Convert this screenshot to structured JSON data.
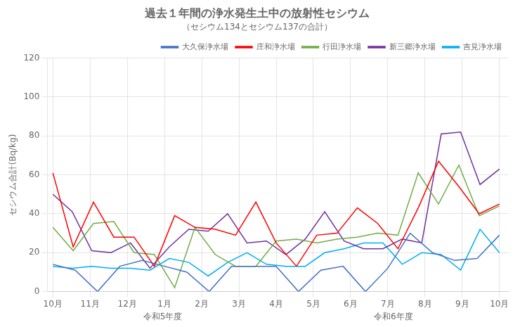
{
  "chart_data": {
    "type": "line",
    "title": "過去１年間の浄水発生土中の放射性セシウム",
    "subtitle": "（セシウム134とセシウム137の合計）",
    "ylabel": "セシウム合計(Bq/kg)",
    "annotations": [
      "令和5年度",
      "令和6年度"
    ],
    "xlim": [
      -0.3,
      24.5
    ],
    "xticks": [
      {
        "value": 0,
        "label": "10月"
      },
      {
        "value": 2,
        "label": "11月"
      },
      {
        "value": 4,
        "label": "12月"
      },
      {
        "value": 6,
        "label": "1月"
      },
      {
        "value": 8,
        "label": "2月"
      },
      {
        "value": 10,
        "label": "3月"
      },
      {
        "value": 12,
        "label": "4月"
      },
      {
        "value": 14,
        "label": "5月"
      },
      {
        "value": 16,
        "label": "6月"
      },
      {
        "value": 18,
        "label": "7月"
      },
      {
        "value": 20,
        "label": "8月"
      },
      {
        "value": 22,
        "label": "9月"
      },
      {
        "value": 24,
        "label": "10月"
      }
    ],
    "ylim": [
      0,
      120
    ],
    "yticks": [
      0,
      20,
      40,
      60,
      80,
      100,
      120
    ],
    "grid": true,
    "legend": "upper right",
    "series": [
      {
        "name": "大久保浄水場",
        "color": "#4472C4",
        "x": [
          0,
          1.2,
          2.4,
          3.6,
          4.8,
          6,
          7.2,
          8.4,
          9.6,
          10.8,
          12,
          13.2,
          14.4,
          15.6,
          16.8,
          18,
          19.2,
          20.4,
          21.6,
          22.8,
          24
        ],
        "values": [
          14,
          11,
          0,
          13,
          16,
          13,
          10,
          0,
          13,
          13,
          13,
          0,
          11,
          13,
          0,
          12,
          30,
          20,
          16,
          17,
          29
        ]
      },
      {
        "name": "庄和浄水場",
        "color": "#FF0000",
        "x": [
          0,
          1.0909090909,
          2.1818181818,
          3.2727272727,
          4.3636363636,
          5.4545454545,
          6.5454545455,
          7.6363636364,
          8.7272727273,
          9.8181818182,
          10.9090909091,
          12,
          13.0909090909,
          14.1818181818,
          15.2727272727,
          16.3636363636,
          17.4545454545,
          18.5454545455,
          19.6363636364,
          20.7272727273,
          21.8181818182,
          22.9090909091,
          24
        ],
        "values": [
          61,
          23,
          46,
          28,
          28,
          13,
          39,
          33,
          32,
          29,
          46,
          25,
          13,
          29,
          30,
          43,
          35,
          22,
          43,
          67,
          54,
          40,
          45
        ]
      },
      {
        "name": "行田浄水場",
        "color": "#70AD47",
        "x": [
          0,
          1.0909090909,
          2.1818181818,
          3.2727272727,
          4.3636363636,
          5.4545454545,
          6.5454545455,
          7.6363636364,
          8.7272727273,
          9.8181818182,
          10.9090909091,
          12,
          13.0909090909,
          14.1818181818,
          15.2727272727,
          16.3636363636,
          17.4545454545,
          18.5454545455,
          19.6363636364,
          20.7272727273,
          21.8181818182,
          22.9090909091,
          24
        ],
        "values": [
          33,
          21,
          35,
          36,
          20,
          19,
          2,
          33,
          19,
          13,
          13,
          26,
          27,
          25,
          27,
          28,
          30,
          29,
          61,
          45,
          65,
          39,
          44
        ]
      },
      {
        "name": "新三郷浄水場",
        "color": "#7030A0",
        "x": [
          0,
          1.0434782609,
          2.0869565217,
          3.1304347826,
          4.1739130435,
          5.2173913043,
          6.2608695652,
          7.3043478261,
          8.347826087,
          9.3913043478,
          10.4347826087,
          11.4782608696,
          12.5217391304,
          13.5652173913,
          14.6086956522,
          15.652173913,
          16.6956521739,
          17.7391304348,
          18.7826086957,
          19.8260869565,
          20.8695652174,
          21.9130434783,
          22.9565217391,
          24
        ],
        "values": [
          50,
          41,
          21,
          20,
          25,
          12,
          23,
          32,
          31,
          40,
          25,
          26,
          19,
          27,
          41,
          26,
          22,
          22,
          27,
          25,
          81,
          82,
          55,
          63
        ]
      },
      {
        "name": "吉見浄水場",
        "color": "#00B0F0",
        "x": [
          0,
          1.0434782609,
          2.0869565217,
          3.1304347826,
          4.1739130435,
          5.2173913043,
          6.2608695652,
          7.3043478261,
          8.347826087,
          9.3913043478,
          10.4347826087,
          11.4782608696,
          12.5217391304,
          13.5652173913,
          14.6086956522,
          15.652173913,
          16.6956521739,
          17.7391304348,
          18.7826086957,
          19.8260869565,
          20.8695652174,
          21.9130434783,
          22.9565217391,
          24
        ],
        "values": [
          13,
          12,
          13,
          12,
          12,
          11,
          17,
          15,
          8,
          15,
          20,
          14,
          13,
          13,
          20,
          22,
          25,
          25,
          14,
          20,
          19,
          11,
          32,
          20
        ]
      }
    ]
  }
}
